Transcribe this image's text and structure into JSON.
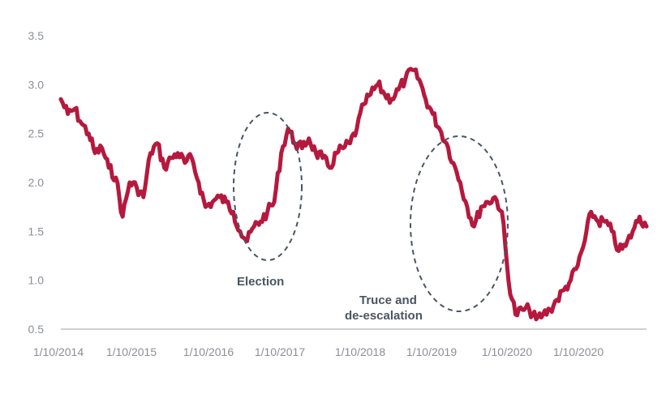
{
  "chart_data": {
    "type": "line",
    "title": "",
    "xlabel": "",
    "ylabel": "",
    "ylim": [
      0.5,
      3.5
    ],
    "yticks": [
      "3.5",
      "3.0",
      "2.5",
      "2.0",
      "1.5",
      "1.0",
      "0.5"
    ],
    "xticks": [
      "1/10/2014",
      "1/10/2015",
      "1/10/2016",
      "1/10/2017",
      "1/10/2018",
      "1/10/2019",
      "1/10/2020",
      "1/10/2020"
    ],
    "grid": false,
    "legend": "none",
    "line_color": "#b5193d",
    "series": [
      {
        "points": [
          [
            "2014-10-01",
            2.85
          ],
          [
            "2014-11-01",
            2.7
          ],
          [
            "2014-12-01",
            2.75
          ],
          [
            "2015-01-01",
            2.6
          ],
          [
            "2015-02-01",
            2.5
          ],
          [
            "2015-03-01",
            2.3
          ],
          [
            "2015-04-01",
            2.35
          ],
          [
            "2015-05-01",
            2.15
          ],
          [
            "2015-06-01",
            2.05
          ],
          [
            "2015-07-01",
            1.65
          ],
          [
            "2015-08-01",
            2.0
          ],
          [
            "2015-09-01",
            1.95
          ],
          [
            "2015-10-01",
            1.85
          ],
          [
            "2015-11-01",
            2.3
          ],
          [
            "2015-12-01",
            2.4
          ],
          [
            "2016-01-01",
            2.15
          ],
          [
            "2016-02-01",
            2.25
          ],
          [
            "2016-03-01",
            2.3
          ],
          [
            "2016-04-01",
            2.2
          ],
          [
            "2016-05-01",
            2.25
          ],
          [
            "2016-06-01",
            2.0
          ],
          [
            "2016-07-01",
            1.75
          ],
          [
            "2016-08-01",
            1.8
          ],
          [
            "2016-09-01",
            1.85
          ],
          [
            "2016-10-01",
            1.8
          ],
          [
            "2016-11-01",
            1.7
          ],
          [
            "2016-12-01",
            1.5
          ],
          [
            "2017-01-01",
            1.4
          ],
          [
            "2017-02-01",
            1.55
          ],
          [
            "2017-03-01",
            1.6
          ],
          [
            "2017-04-01",
            1.7
          ],
          [
            "2017-05-01",
            1.8
          ],
          [
            "2017-06-01",
            2.3
          ],
          [
            "2017-07-01",
            2.55
          ],
          [
            "2017-08-01",
            2.4
          ],
          [
            "2017-09-01",
            2.35
          ],
          [
            "2017-10-01",
            2.45
          ],
          [
            "2017-11-01",
            2.3
          ],
          [
            "2017-12-01",
            2.25
          ],
          [
            "2018-01-01",
            2.15
          ],
          [
            "2018-02-01",
            2.3
          ],
          [
            "2018-03-01",
            2.35
          ],
          [
            "2018-04-01",
            2.4
          ],
          [
            "2018-05-01",
            2.55
          ],
          [
            "2018-06-01",
            2.8
          ],
          [
            "2018-07-01",
            2.9
          ],
          [
            "2018-08-01",
            3.0
          ],
          [
            "2018-09-01",
            2.9
          ],
          [
            "2018-10-01",
            2.85
          ],
          [
            "2018-11-01",
            2.95
          ],
          [
            "2018-12-01",
            3.05
          ],
          [
            "2019-01-01",
            3.15
          ],
          [
            "2019-02-01",
            3.05
          ],
          [
            "2019-03-01",
            2.85
          ],
          [
            "2019-04-01",
            2.7
          ],
          [
            "2019-05-01",
            2.55
          ],
          [
            "2019-06-01",
            2.4
          ],
          [
            "2019-07-01",
            2.2
          ],
          [
            "2019-08-01",
            2.0
          ],
          [
            "2019-09-01",
            1.75
          ],
          [
            "2019-10-01",
            1.55
          ],
          [
            "2019-11-01",
            1.75
          ],
          [
            "2019-12-01",
            1.8
          ],
          [
            "2020-01-01",
            1.85
          ],
          [
            "2020-02-01",
            1.7
          ],
          [
            "2020-03-01",
            1.0
          ],
          [
            "2020-04-01",
            0.65
          ],
          [
            "2020-05-01",
            0.7
          ],
          [
            "2020-06-01",
            0.7
          ],
          [
            "2020-07-01",
            0.6
          ],
          [
            "2020-08-01",
            0.65
          ],
          [
            "2020-09-01",
            0.7
          ],
          [
            "2020-10-01",
            0.8
          ],
          [
            "2020-11-01",
            0.9
          ],
          [
            "2020-12-01",
            1.0
          ],
          [
            "2021-01-01",
            1.15
          ],
          [
            "2021-02-01",
            1.4
          ],
          [
            "2021-03-01",
            1.7
          ],
          [
            "2021-04-01",
            1.6
          ],
          [
            "2021-05-01",
            1.6
          ],
          [
            "2021-06-01",
            1.5
          ],
          [
            "2021-07-01",
            1.3
          ],
          [
            "2021-08-01",
            1.35
          ],
          [
            "2021-09-01",
            1.5
          ],
          [
            "2021-10-01",
            1.65
          ],
          [
            "2021-11-01",
            1.55
          ]
        ]
      }
    ],
    "annotations": [
      {
        "text": "Election"
      },
      {
        "lines": [
          "Truce and",
          "de-escalation"
        ]
      }
    ]
  }
}
